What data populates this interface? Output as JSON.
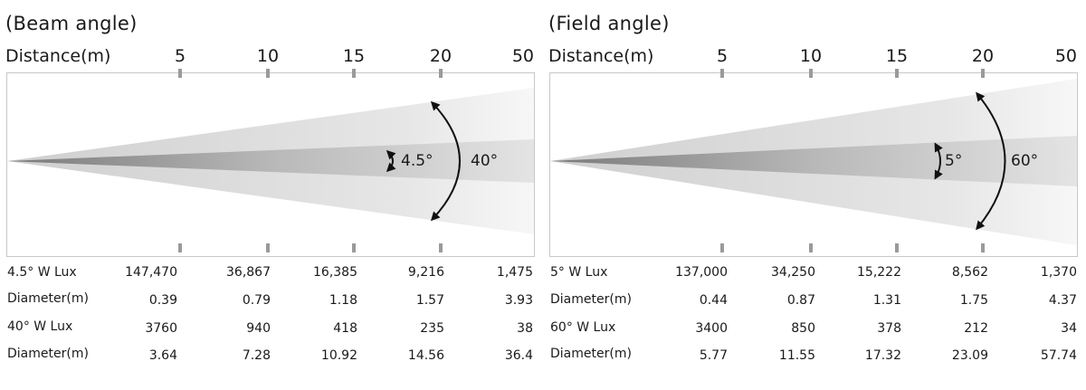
{
  "panels": [
    {
      "title": "(Beam angle)",
      "distance_label": "Distance(m)",
      "distances": [
        "5",
        "10",
        "15",
        "20",
        "50"
      ],
      "inner_angle_label": "4.5°",
      "outer_angle_label": "40°",
      "rows": [
        {
          "label": "4.5° W Lux",
          "values": [
            "147,470",
            "36,867",
            "16,385",
            "9,216",
            "1,475"
          ]
        },
        {
          "label": "Diameter(m)",
          "values": [
            "0.39",
            "0.79",
            "1.18",
            "1.57",
            "3.93"
          ]
        },
        {
          "label": "40° W Lux",
          "values": [
            "3760",
            "940",
            "418",
            "235",
            "38"
          ]
        },
        {
          "label": "Diameter(m)",
          "values": [
            "3.64",
            "7.28",
            "10.92",
            "14.56",
            "36.4"
          ]
        }
      ]
    },
    {
      "title": "(Field angle)",
      "distance_label": "Distance(m)",
      "distances": [
        "5",
        "10",
        "15",
        "20",
        "50"
      ],
      "inner_angle_label": "5°",
      "outer_angle_label": "60°",
      "rows": [
        {
          "label": "5° W Lux",
          "values": [
            "137,000",
            "34,250",
            "15,222",
            "8,562",
            "1,370"
          ]
        },
        {
          "label": "Diameter(m)",
          "values": [
            "0.44",
            "0.87",
            "1.31",
            "1.75",
            "4.37"
          ]
        },
        {
          "label": "60° W Lux",
          "values": [
            "3400",
            "850",
            "378",
            "212",
            "34"
          ]
        },
        {
          "label": "Diameter(m)",
          "values": [
            "5.77",
            "11.55",
            "17.32",
            "23.09",
            "57.74"
          ]
        }
      ]
    }
  ]
}
